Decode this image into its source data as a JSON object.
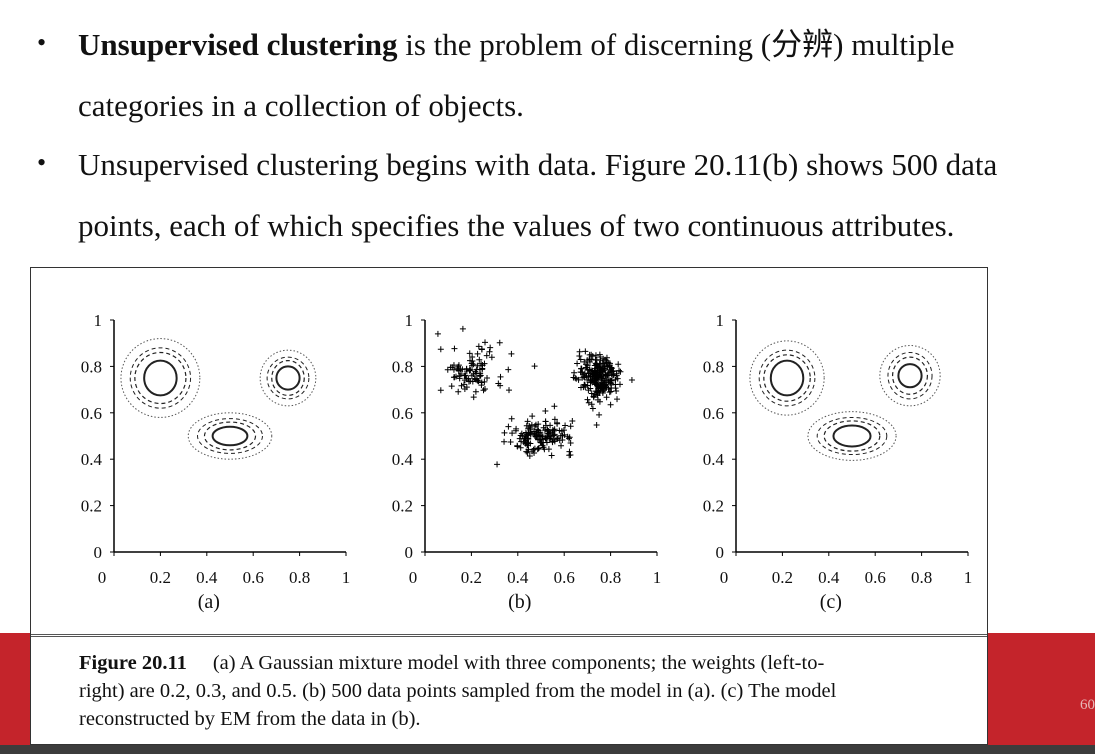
{
  "bullets": [
    {
      "bold": "Unsupervised clustering",
      "line1": " is the problem of discerning (分辨) multiple",
      "line2": "categories in a collection of objects."
    },
    {
      "line1": "Unsupervised clustering begins with data. Figure 20.11(b) shows 500 data",
      "line2": "points, each of which specifies the values of two continuous attributes."
    }
  ],
  "figure": {
    "caption_label": "Figure 20.11",
    "caption_line1": "(a) A Gaussian mixture model with three components; the weights (left-to-",
    "caption_line2": "right) are 0.2, 0.3, and 0.5. (b) 500 data points sampled from the model in (a). (c) The model",
    "caption_line3": "reconstructed by EM from the data in (b)."
  },
  "page_number": "60",
  "chart_data": [
    {
      "type": "contour",
      "label": "(a)",
      "xlim": [
        0,
        1
      ],
      "ylim": [
        0,
        1
      ],
      "x_ticks": [
        "0",
        "0.2",
        "0.4",
        "0.6",
        "0.8",
        "1"
      ],
      "y_ticks": [
        "0",
        "0.2",
        "0.4",
        "0.6",
        "0.8",
        "1"
      ],
      "components": [
        {
          "weight": 0.2,
          "center": [
            0.2,
            0.75
          ]
        },
        {
          "weight": 0.3,
          "center": [
            0.5,
            0.5
          ]
        },
        {
          "weight": 0.5,
          "center": [
            0.75,
            0.75
          ]
        }
      ]
    },
    {
      "type": "scatter",
      "label": "(b)",
      "n_points": 500,
      "marker": "+",
      "xlim": [
        0,
        1
      ],
      "ylim": [
        0,
        1
      ],
      "x_ticks": [
        "0",
        "0.2",
        "0.4",
        "0.6",
        "0.8",
        "1"
      ],
      "y_ticks": [
        "0",
        "0.2",
        "0.4",
        "0.6",
        "0.8",
        "1"
      ],
      "clusters": [
        {
          "center": [
            0.2,
            0.78
          ],
          "approx_points": 100
        },
        {
          "center": [
            0.5,
            0.5
          ],
          "approx_points": 150
        },
        {
          "center": [
            0.75,
            0.75
          ],
          "approx_points": 250
        }
      ]
    },
    {
      "type": "contour",
      "label": "(c)",
      "xlim": [
        0,
        1
      ],
      "ylim": [
        0,
        1
      ],
      "x_ticks": [
        "0",
        "0.2",
        "0.4",
        "0.6",
        "0.8",
        "1"
      ],
      "y_ticks": [
        "0",
        "0.2",
        "0.4",
        "0.6",
        "0.8",
        "1"
      ],
      "components": [
        {
          "center": [
            0.22,
            0.75
          ]
        },
        {
          "center": [
            0.5,
            0.5
          ]
        },
        {
          "center": [
            0.75,
            0.76
          ]
        }
      ]
    }
  ]
}
